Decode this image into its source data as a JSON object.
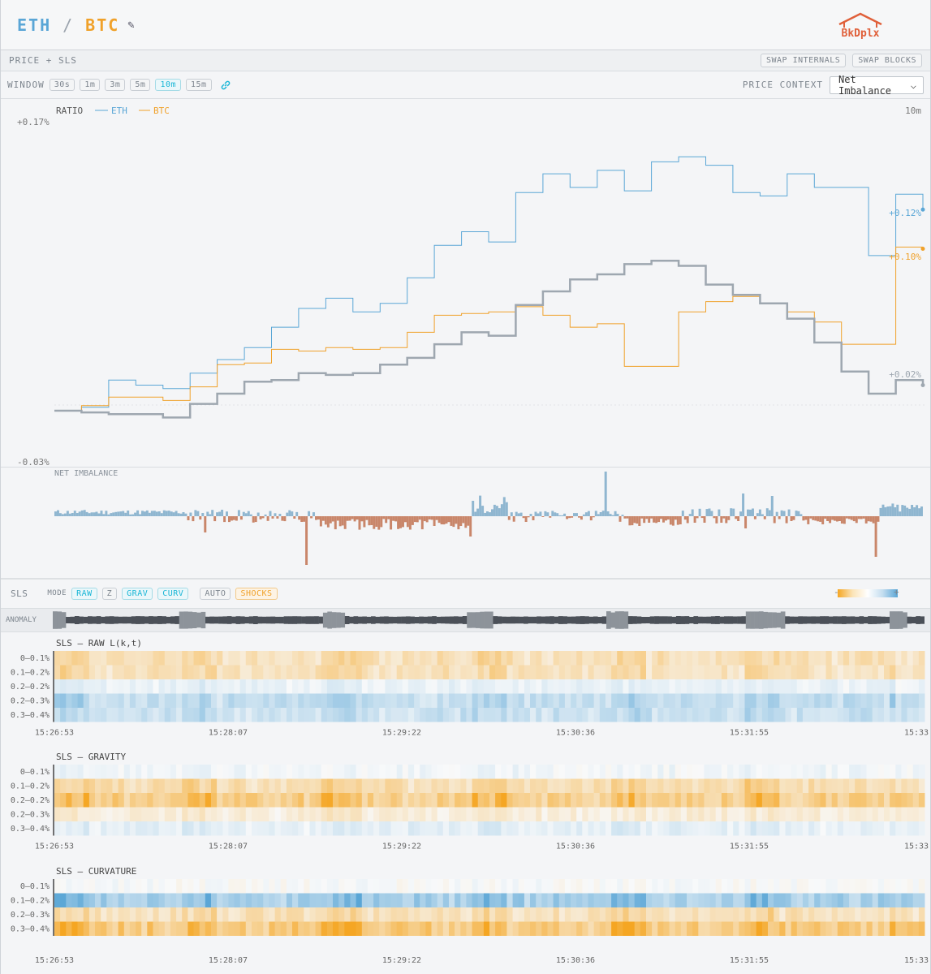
{
  "header": {
    "base": "ETH",
    "slash": "/",
    "quote": "BTC",
    "edit_icon": "pencil-icon",
    "logo_text": "BkDplx"
  },
  "subbar": {
    "title": "PRICE + SLS",
    "swap_internals": "SWAP INTERNALS",
    "swap_blocks": "SWAP BLOCKS"
  },
  "window": {
    "label": "WINDOW",
    "options": [
      "30s",
      "1m",
      "3m",
      "5m",
      "10m",
      "15m"
    ],
    "active": "10m",
    "link_icon": "link-icon",
    "context_label": "PRICE CONTEXT",
    "context_value": "Net Imbalance"
  },
  "colors": {
    "eth": "#5aa6d6",
    "btc": "#f0a12a",
    "ratio": "#9ea7b0",
    "pos": "#8fb6d0",
    "neg": "#c9866a"
  },
  "chart_data": [
    {
      "type": "line",
      "title": "RATIO",
      "window": "10m",
      "ylim": [
        -0.03,
        0.17
      ],
      "ytick_labels": [
        "+0.17%",
        "-0.03%"
      ],
      "series": [
        {
          "name": "ETH",
          "end_label": "+0.12%",
          "values": [
            0,
            0.002,
            0.018,
            0.015,
            0.013,
            0.022,
            0.03,
            0.037,
            0.049,
            0.06,
            0.066,
            0.058,
            0.063,
            0.078,
            0.097,
            0.105,
            0.099,
            0.128,
            0.139,
            0.131,
            0.141,
            0.129,
            0.146,
            0.149,
            0.144,
            0.128,
            0.126,
            0.139,
            0.131,
            0.131,
            0.091,
            0.127,
            0.118
          ]
        },
        {
          "name": "BTC",
          "end_label": "+0.10%",
          "values": [
            0,
            0.003,
            0.008,
            0.008,
            0.006,
            0.014,
            0.027,
            0.028,
            0.036,
            0.035,
            0.037,
            0.036,
            0.037,
            0.046,
            0.056,
            0.057,
            0.058,
            0.061,
            0.056,
            0.049,
            0.051,
            0.026,
            0.026,
            0.058,
            0.064,
            0.067,
            0.063,
            0.058,
            0.052,
            0.039,
            0.039,
            0.096,
            0.095
          ]
        },
        {
          "name": "Ratio",
          "end_label": "+0.02%",
          "values": [
            0,
            -0.001,
            -0.002,
            -0.002,
            -0.004,
            0.004,
            0.01,
            0.017,
            0.018,
            0.022,
            0.021,
            0.022,
            0.027,
            0.031,
            0.039,
            0.046,
            0.044,
            0.062,
            0.07,
            0.077,
            0.08,
            0.086,
            0.088,
            0.085,
            0.074,
            0.068,
            0.063,
            0.054,
            0.04,
            0.023,
            0.01,
            0.018,
            0.015
          ]
        }
      ]
    },
    {
      "type": "bar",
      "title": "NET IMBALANCE"
    },
    {
      "type": "heatmap",
      "title": "SLS — RAW L(k,t)",
      "rows": [
        "0–0.1%",
        "0.1–0.2%",
        "0.2–0.2%",
        "0.2–0.3%",
        "0.3–0.4%"
      ],
      "times": [
        "15:26:53",
        "15:28:07",
        "15:29:22",
        "15:30:36",
        "15:31:55",
        "15:33"
      ]
    },
    {
      "type": "heatmap",
      "title": "SLS — GRAVITY",
      "rows": [
        "0–0.1%",
        "0.1–0.2%",
        "0.2–0.2%",
        "0.2–0.3%",
        "0.3–0.4%"
      ],
      "times": [
        "15:26:53",
        "15:28:07",
        "15:29:22",
        "15:30:36",
        "15:31:55",
        "15:33"
      ]
    },
    {
      "type": "heatmap",
      "title": "SLS — CURVATURE",
      "rows": [
        "0–0.1%",
        "0.1–0.2%",
        "0.2–0.3%",
        "0.3–0.4%"
      ],
      "times": [
        "15:26:53",
        "15:28:07",
        "15:29:22",
        "15:30:36",
        "15:31:55",
        "15:33"
      ]
    }
  ],
  "sls": {
    "label": "SLS",
    "mode_label": "MODE",
    "modes": [
      "RAW",
      "Z",
      "GRAV",
      "CURV"
    ],
    "auto": "AUTO",
    "shocks": "SHOCKS",
    "legend_minus": "-",
    "legend_plus": "+",
    "anomaly_label": "ANOMALY"
  }
}
